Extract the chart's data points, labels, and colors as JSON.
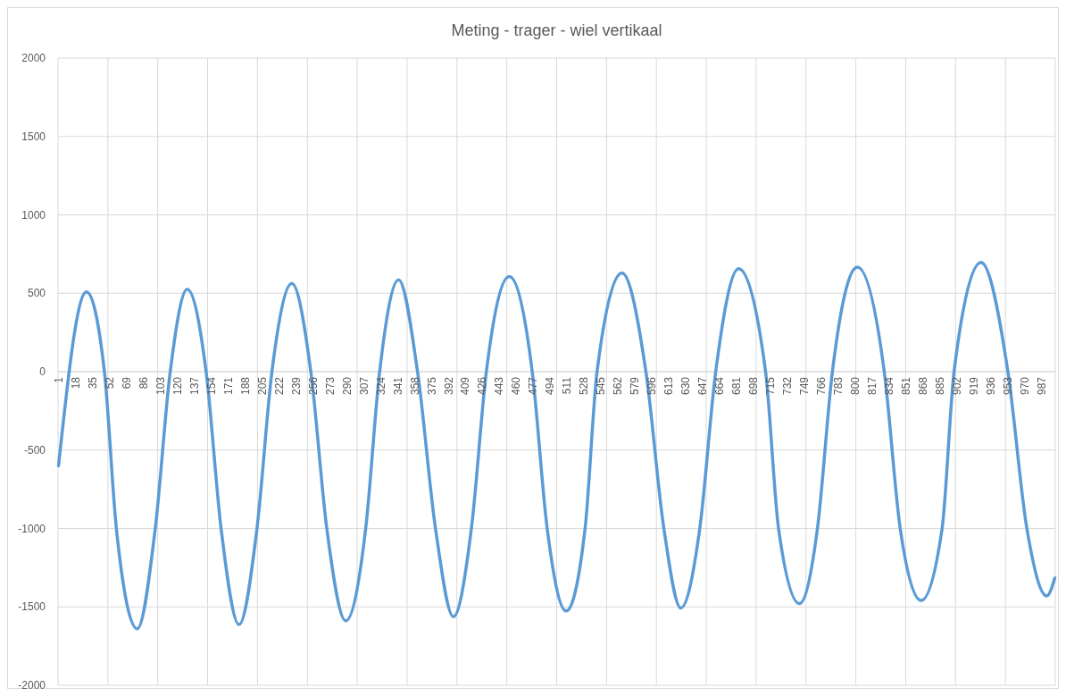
{
  "chart_data": {
    "type": "line",
    "title": "Meting - trager - wiel vertikaal",
    "series": [
      {
        "color": "#5b9bd5",
        "x": [
          1,
          29,
          47,
          59,
          80,
          98,
          113,
          130,
          149,
          164,
          182,
          200,
          215,
          235,
          254,
          270,
          289,
          309,
          323,
          342,
          361,
          379,
          397,
          415,
          430,
          453,
          476,
          491,
          510,
          529,
          541,
          566,
          590,
          608,
          625,
          644,
          660,
          683,
          710,
          723,
          744,
          762,
          777,
          802,
          829,
          845,
          866,
          887,
          899,
          926,
          953,
          972,
          992,
          1000
        ],
        "values": [
          -600,
          509,
          0,
          -1000,
          -1640,
          -1000,
          0,
          526,
          0,
          -1000,
          -1613,
          -1000,
          0,
          562,
          0,
          -1000,
          -1589,
          -1000,
          0,
          586,
          0,
          -1000,
          -1563,
          -1000,
          0,
          607,
          0,
          -1000,
          -1526,
          -1000,
          0,
          630,
          0,
          -1000,
          -1507,
          -1000,
          0,
          657,
          0,
          -1000,
          -1479,
          -1000,
          0,
          667,
          0,
          -1000,
          -1459,
          -1000,
          0,
          696,
          0,
          -1000,
          -1430,
          -1316
        ]
      }
    ],
    "xlim": [
      0.5,
      1000.5
    ],
    "xticks": [
      1,
      18,
      35,
      52,
      69,
      86,
      103,
      120,
      137,
      154,
      171,
      188,
      205,
      222,
      239,
      256,
      273,
      290,
      307,
      324,
      341,
      358,
      375,
      392,
      409,
      426,
      443,
      460,
      477,
      494,
      511,
      528,
      545,
      562,
      579,
      596,
      613,
      630,
      647,
      664,
      681,
      698,
      715,
      732,
      749,
      766,
      783,
      800,
      817,
      834,
      851,
      868,
      885,
      902,
      919,
      936,
      953,
      970,
      987,
      {
        "value": 50.5,
        "label": null
      },
      {
        "value": 100.5,
        "label": null
      },
      {
        "value": 150.5,
        "label": null
      },
      {
        "value": 200.5,
        "label": null
      },
      {
        "value": 250.5,
        "label": null
      },
      {
        "value": 300.5,
        "label": null
      },
      {
        "value": 350.5,
        "label": null
      },
      {
        "value": 400.5,
        "label": null
      },
      {
        "value": 450.5,
        "label": null
      },
      {
        "value": 500.5,
        "label": null
      },
      {
        "value": 550.5,
        "label": null
      },
      {
        "value": 600.5,
        "label": null
      },
      {
        "value": 650.5,
        "label": null
      },
      {
        "value": 700.5,
        "label": null
      },
      {
        "value": 750.5,
        "label": null
      },
      {
        "value": 800.5,
        "label": null
      },
      {
        "value": 850.5,
        "label": null
      },
      {
        "value": 900.5,
        "label": null
      },
      {
        "value": 950.5,
        "label": null
      }
    ],
    "ylim": [
      -2000,
      2000
    ],
    "yticks": [
      -2000,
      -1500,
      -1000,
      -500,
      0,
      500,
      1000,
      1500,
      2000
    ],
    "grid": true,
    "marker": "none",
    "line_style": "solid"
  }
}
